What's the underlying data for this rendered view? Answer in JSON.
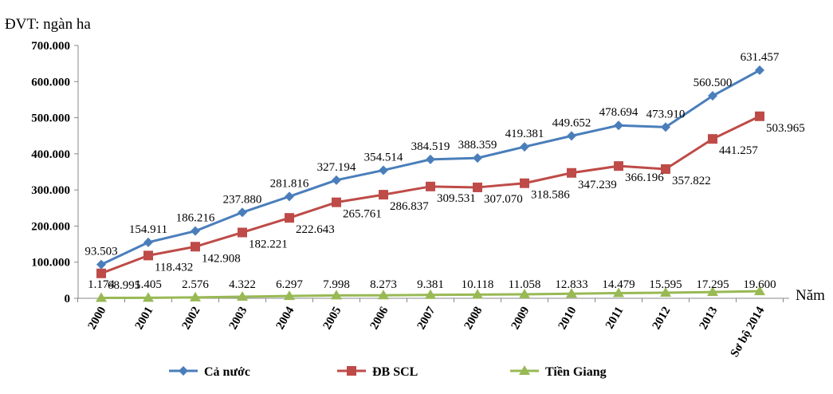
{
  "chart_data": {
    "type": "line",
    "unit_label": "ĐVT: ngàn ha",
    "xlabel": "Năm",
    "categories": [
      "2000",
      "2001",
      "2002",
      "2003",
      "2004",
      "2005",
      "2006",
      "2007",
      "2008",
      "2009",
      "2010",
      "2011",
      "2012",
      "2013",
      "Sơ bộ 2014"
    ],
    "ylim": [
      0,
      700000
    ],
    "yticks": [
      0,
      100000,
      200000,
      300000,
      400000,
      500000,
      600000,
      700000
    ],
    "ytick_labels": [
      "0",
      "100.000",
      "200.000",
      "300.000",
      "400.000",
      "500.000",
      "600.000",
      "700.000"
    ],
    "grid": false,
    "legend_position": "bottom",
    "series": [
      {
        "name": "Cả nước",
        "color": "#4a7ebb",
        "marker": "diamond",
        "values": [
          93503,
          154911,
          186216,
          237880,
          281816,
          327194,
          354514,
          384519,
          388359,
          419381,
          449652,
          478694,
          473910,
          560500,
          631457
        ],
        "labels": [
          "93.503",
          "154.911",
          "186.216",
          "237.880",
          "281.816",
          "327.194",
          "354.514",
          "384.519",
          "388.359",
          "419.381",
          "449.652",
          "478.694",
          "473.910",
          "560.500",
          "631.457"
        ]
      },
      {
        "name": "ĐB SCL",
        "color": "#be4b48",
        "marker": "square",
        "values": [
          68995,
          118432,
          142908,
          182221,
          222643,
          265761,
          286837,
          309531,
          307070,
          318586,
          347239,
          366196,
          357822,
          441257,
          503965
        ],
        "labels": [
          "68.995",
          "118.432",
          "142.908",
          "182.221",
          "222.643",
          "265.761",
          "286.837",
          "309.531",
          "307.070",
          "318.586",
          "347.239",
          "366.196",
          "357.822",
          "441.257",
          "503.965"
        ]
      },
      {
        "name": "Tiền Giang",
        "color": "#98b954",
        "marker": "triangle",
        "values": [
          1174,
          1405,
          2576,
          4322,
          6297,
          7998,
          8273,
          9381,
          10118,
          11058,
          12833,
          14479,
          15595,
          17295,
          19600
        ],
        "labels": [
          "1.174",
          "1.405",
          "2.576",
          "4.322",
          "6.297",
          "7.998",
          "8.273",
          "9.381",
          "10.118",
          "11.058",
          "12.833",
          "14.479",
          "15.595",
          "17.295",
          "19.600"
        ]
      }
    ]
  }
}
